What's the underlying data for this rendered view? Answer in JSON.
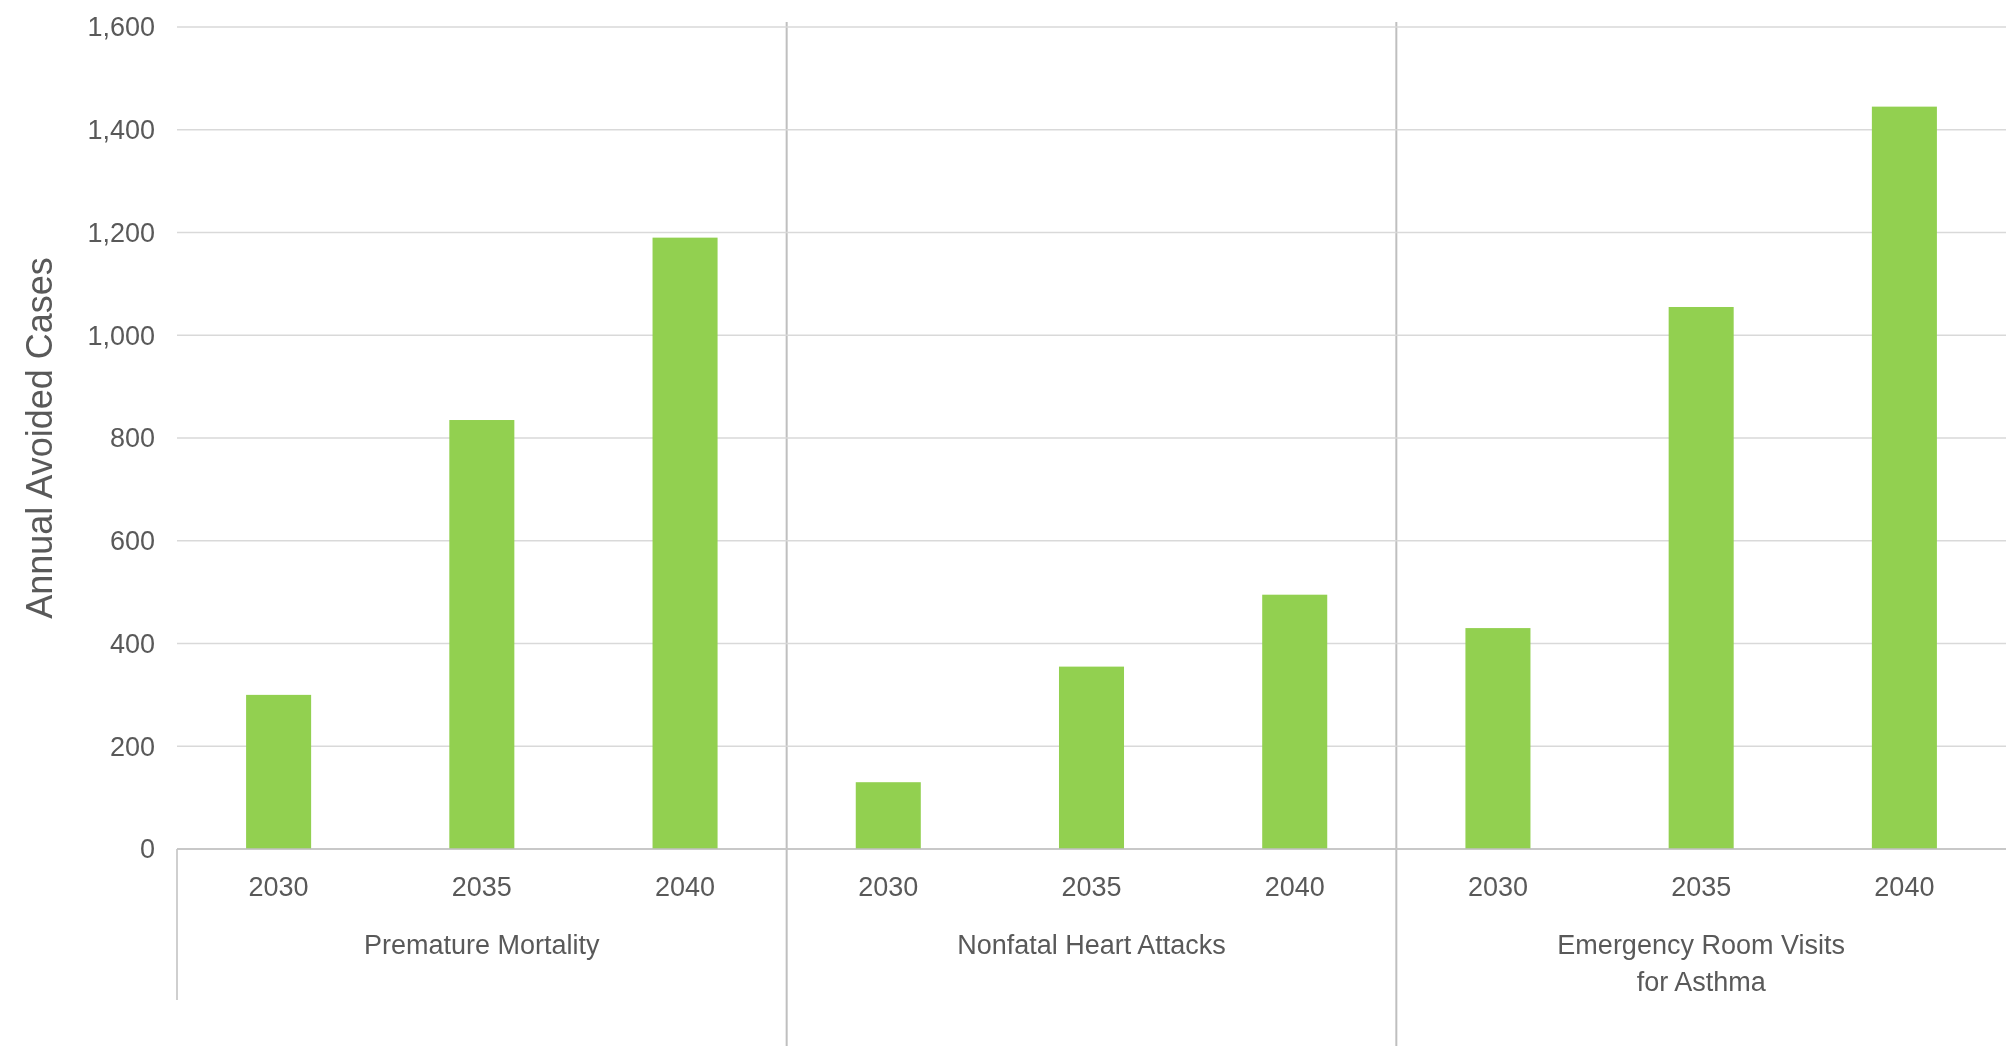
{
  "chart_data": [
    {
      "type": "bar",
      "ylabel": "Annual Avoided Cases",
      "xlabel": "Premature Mortality",
      "categories": [
        "2030",
        "2035",
        "2040"
      ],
      "values": [
        300,
        835,
        1190
      ],
      "color": "#92d050",
      "ylim": [
        0,
        1600
      ],
      "yticks": [
        0,
        {
          "value": 200,
          "label": "200"
        },
        {
          "value": 400,
          "label": "400"
        },
        {
          "value": 600,
          "label": "600"
        },
        {
          "value": 800,
          "label": "800"
        },
        {
          "value": 1000,
          "label": "1,000"
        },
        {
          "value": 1200,
          "label": "1,200"
        },
        {
          "value": 1400,
          "label": "1,400"
        },
        {
          "value": 1600,
          "label": "1,600"
        }
      ],
      "grid": "y"
    },
    {
      "type": "bar",
      "xlabel": "Nonfatal Heart Attacks",
      "categories": [
        "2030",
        "2035",
        "2040"
      ],
      "values": [
        130,
        355,
        495
      ],
      "color": "#92d050",
      "ylim": [
        0,
        1600
      ],
      "yticks": [
        {
          "value": 0,
          "label": null
        },
        {
          "value": 200,
          "label": null
        },
        {
          "value": 400,
          "label": null
        },
        {
          "value": 600,
          "label": null
        },
        {
          "value": 800,
          "label": null
        },
        {
          "value": 1000,
          "label": null
        },
        {
          "value": 1200,
          "label": null
        },
        {
          "value": 1400,
          "label": null
        },
        {
          "value": 1600,
          "label": null
        }
      ],
      "grid": "y",
      "tick_labels": "x"
    },
    {
      "type": "bar",
      "xlabel": "Emergency Room Visits for Asthma",
      "categories": [
        "2030",
        "2035",
        "2040"
      ],
      "values": [
        430,
        1055,
        1445
      ],
      "color": "#92d050",
      "ylim": [
        0,
        1600
      ],
      "yticks": [
        {
          "value": 0,
          "label": null
        },
        {
          "value": 200,
          "label": null
        },
        {
          "value": 400,
          "label": null
        },
        {
          "value": 600,
          "label": null
        },
        {
          "value": 800,
          "label": null
        },
        {
          "value": 1000,
          "label": null
        },
        {
          "value": 1200,
          "label": null
        },
        {
          "value": 1400,
          "label": null
        },
        {
          "value": 1600,
          "label": null
        }
      ],
      "grid": "y",
      "tick_labels": "x"
    }
  ]
}
